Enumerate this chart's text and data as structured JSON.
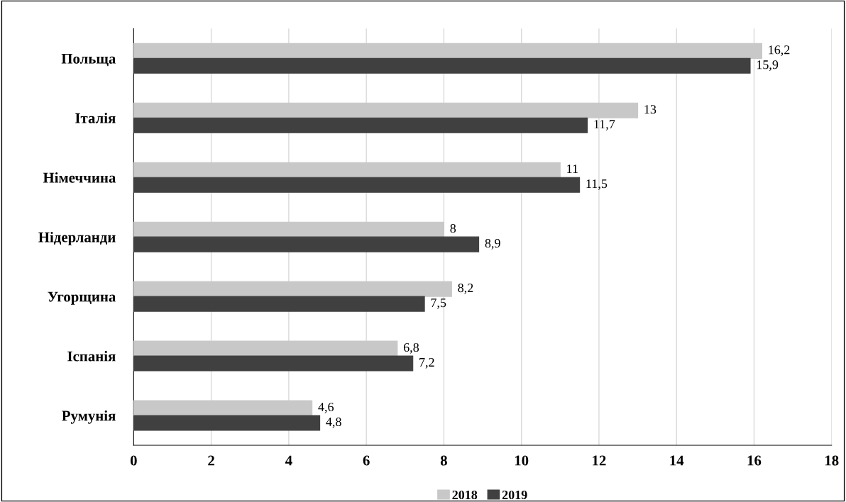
{
  "chart_data": {
    "type": "bar",
    "orientation": "horizontal",
    "categories": [
      "Польща",
      "Італія",
      "Німеччина",
      "Нідерланди",
      "Угорщина",
      "Іспанія",
      "Румунія"
    ],
    "series": [
      {
        "name": "2018",
        "color": "#c8c8c8",
        "values": [
          16.2,
          13,
          11,
          8,
          8.2,
          6.8,
          4.6
        ],
        "value_labels": [
          "16,2",
          "13",
          "11",
          "8",
          "8,2",
          "6,8",
          "4,6"
        ]
      },
      {
        "name": "2019",
        "color": "#404040",
        "values": [
          15.9,
          11.7,
          11.5,
          8.9,
          7.5,
          7.2,
          4.8
        ],
        "value_labels": [
          "15,9",
          "11,7",
          "11,5",
          "8,9",
          "7,5",
          "7,2",
          "4,8"
        ]
      }
    ],
    "xlim": [
      0,
      18
    ],
    "xticks": [
      0,
      2,
      4,
      6,
      8,
      10,
      12,
      14,
      16,
      18
    ],
    "grid": "x",
    "legend": "bottom"
  }
}
